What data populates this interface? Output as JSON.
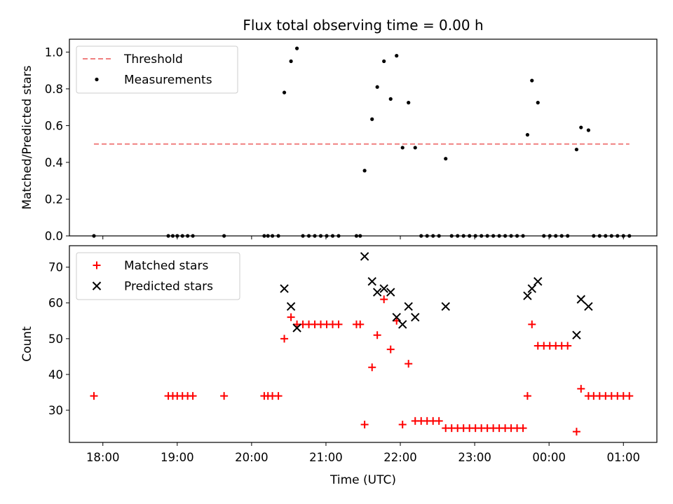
{
  "title": "Flux total observing time = 0.00 h",
  "colors": {
    "threshold": "#f08080",
    "measurements": "#000000",
    "matched": "#ff0000",
    "predicted": "#000000"
  },
  "chart_data": [
    {
      "type": "scatter",
      "ylabel": "Matched/Predicted stars",
      "xlabel": "",
      "xlim": [
        17.55,
        25.45
      ],
      "ylim": [
        0,
        1.07
      ],
      "yticks": [
        0.0,
        0.2,
        0.4,
        0.6,
        0.8,
        1.0
      ],
      "ytick_labels": [
        "0.0",
        "0.2",
        "0.4",
        "0.6",
        "0.8",
        "1.0"
      ],
      "legend_position": "top-left",
      "threshold": {
        "name": "Threshold",
        "y": 0.5,
        "x_range": [
          17.88,
          25.08
        ]
      },
      "series": [
        {
          "name": "Measurements",
          "x": [
            17.88,
            18.88,
            18.94,
            19.0,
            19.07,
            19.14,
            19.21,
            19.63,
            20.17,
            20.22,
            20.28,
            20.36,
            20.44,
            20.53,
            20.61,
            20.69,
            20.77,
            20.85,
            20.93,
            21.01,
            21.09,
            21.17,
            21.41,
            21.46,
            21.52,
            21.62,
            21.69,
            21.78,
            21.87,
            21.95,
            22.03,
            22.11,
            22.2,
            22.28,
            22.36,
            22.44,
            22.52,
            22.61,
            22.69,
            22.77,
            22.85,
            22.93,
            23.01,
            23.09,
            23.17,
            23.25,
            23.33,
            23.41,
            23.49,
            23.57,
            23.65,
            23.71,
            23.77,
            23.85,
            23.93,
            24.01,
            24.09,
            24.17,
            24.25,
            24.37,
            24.43,
            24.53,
            24.6,
            24.68,
            24.76,
            24.84,
            24.92,
            25.0,
            25.08
          ],
          "y": [
            0.0,
            0.0,
            0.0,
            0.0,
            0.0,
            0.0,
            0.0,
            0.0,
            0.0,
            0.0,
            0.0,
            0.0,
            0.78,
            0.95,
            1.02,
            0.0,
            0.0,
            0.0,
            0.0,
            0.0,
            0.0,
            0.0,
            0.0,
            0.0,
            0.355,
            0.635,
            0.81,
            0.95,
            0.745,
            0.98,
            0.48,
            0.725,
            0.48,
            0.0,
            0.0,
            0.0,
            0.0,
            0.42,
            0.0,
            0.0,
            0.0,
            0.0,
            0.0,
            0.0,
            0.0,
            0.0,
            0.0,
            0.0,
            0.0,
            0.0,
            0.0,
            0.55,
            0.845,
            0.725,
            0.0,
            0.0,
            0.0,
            0.0,
            0.0,
            0.47,
            0.59,
            0.575,
            0.0,
            0.0,
            0.0,
            0.0,
            0.0,
            0.0,
            0.0
          ]
        }
      ]
    },
    {
      "type": "scatter",
      "ylabel": "Count",
      "xlabel": "Time (UTC)",
      "xlim": [
        17.55,
        25.45
      ],
      "ylim": [
        21,
        76
      ],
      "yticks": [
        30,
        40,
        50,
        60,
        70
      ],
      "ytick_labels": [
        "30",
        "40",
        "50",
        "60",
        "70"
      ],
      "xticks": [
        18,
        19,
        20,
        21,
        22,
        23,
        24,
        25
      ],
      "xtick_labels": [
        "18:00",
        "19:00",
        "20:00",
        "21:00",
        "22:00",
        "23:00",
        "00:00",
        "01:00"
      ],
      "legend_position": "top-left",
      "series": [
        {
          "name": "Matched stars",
          "marker": "plus",
          "x": [
            17.88,
            18.88,
            18.94,
            19.0,
            19.07,
            19.14,
            19.21,
            19.63,
            20.17,
            20.22,
            20.28,
            20.36,
            20.44,
            20.53,
            20.61,
            20.69,
            20.77,
            20.85,
            20.93,
            21.01,
            21.09,
            21.17,
            21.41,
            21.46,
            21.52,
            21.62,
            21.69,
            21.78,
            21.87,
            21.95,
            22.03,
            22.11,
            22.2,
            22.28,
            22.36,
            22.44,
            22.52,
            22.61,
            22.69,
            22.77,
            22.85,
            22.93,
            23.01,
            23.09,
            23.17,
            23.25,
            23.33,
            23.41,
            23.49,
            23.57,
            23.65,
            23.71,
            23.77,
            23.85,
            23.93,
            24.01,
            24.09,
            24.17,
            24.25,
            24.37,
            24.43,
            24.53,
            24.6,
            24.68,
            24.76,
            24.84,
            24.92,
            25.0,
            25.08
          ],
          "y": [
            34,
            34,
            34,
            34,
            34,
            34,
            34,
            34,
            34,
            34,
            34,
            34,
            50,
            56,
            54,
            54,
            54,
            54,
            54,
            54,
            54,
            54,
            54,
            54,
            26,
            42,
            51,
            61,
            47,
            55,
            26,
            43,
            27,
            27,
            27,
            27,
            27,
            25,
            25,
            25,
            25,
            25,
            25,
            25,
            25,
            25,
            25,
            25,
            25,
            25,
            25,
            34,
            54,
            48,
            48,
            48,
            48,
            48,
            48,
            24,
            36,
            34,
            34,
            34,
            34,
            34,
            34,
            34,
            34
          ]
        },
        {
          "name": "Predicted stars",
          "marker": "x",
          "x": [
            20.44,
            20.53,
            20.61,
            21.52,
            21.62,
            21.69,
            21.78,
            21.87,
            21.95,
            22.03,
            22.11,
            22.2,
            22.61,
            23.71,
            23.77,
            23.85,
            24.37,
            24.43,
            24.53
          ],
          "y": [
            64,
            59,
            53,
            73,
            66,
            63,
            64,
            63,
            56,
            54,
            59,
            56,
            59,
            62,
            64,
            66,
            51,
            61,
            59
          ]
        }
      ]
    }
  ]
}
